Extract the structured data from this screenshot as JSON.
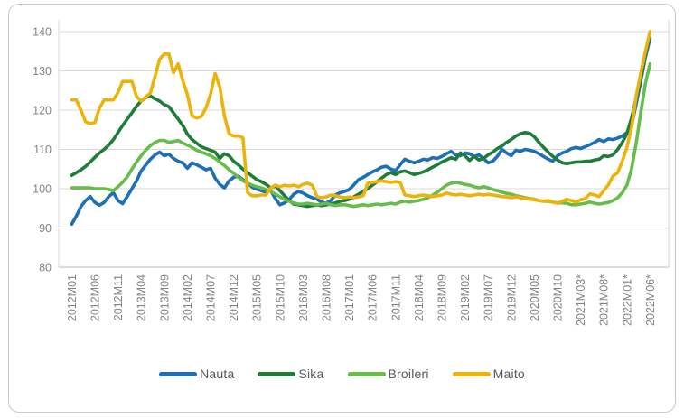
{
  "chart_data": {
    "type": "line",
    "title": "",
    "xlabel": "",
    "ylabel": "",
    "ylim": [
      80,
      145
    ],
    "y_ticks": [
      80,
      90,
      100,
      110,
      120,
      130,
      140
    ],
    "grid": "horizontal",
    "legend_position": "bottom",
    "x_tick_labels": [
      "2012M01",
      "2012M06",
      "2012M11",
      "2013M04",
      "2013M09",
      "2014M02",
      "2014M07",
      "2014M12",
      "2015M05",
      "2015M10",
      "2016M03",
      "2016M08",
      "2017M01",
      "2017M06",
      "2017M11",
      "2018M04",
      "2018M09",
      "2019M02",
      "2019M07",
      "2019M12",
      "2020M05",
      "2020M10",
      "2021M03*",
      "2021M08*",
      "2022M01*",
      "2022M06*"
    ],
    "x_tick_step": 5,
    "x_first": "2012M01",
    "x_last": "2022M06*",
    "series": [
      {
        "name": "Nauta",
        "color": "#1d70b7",
        "values": [
          91.0,
          93.0,
          95.5,
          97.0,
          98.0,
          96.5,
          95.8,
          96.5,
          98.0,
          99.0,
          97.0,
          96.2,
          98.0,
          100.0,
          102.0,
          104.5,
          106.0,
          107.5,
          108.6,
          109.3,
          108.4,
          108.8,
          107.7,
          107.0,
          106.6,
          105.2,
          106.6,
          106.1,
          105.5,
          104.8,
          105.2,
          102.7,
          101.1,
          100.2,
          102.0,
          102.9,
          103.2,
          102.3,
          101.4,
          100.4,
          99.9,
          99.5,
          99.1,
          99.5,
          97.5,
          95.9,
          96.4,
          97.2,
          98.6,
          99.3,
          98.9,
          98.2,
          97.7,
          97.3,
          96.6,
          96.3,
          97.0,
          98.4,
          99.0,
          99.3,
          99.8,
          101.0,
          102.3,
          102.9,
          103.6,
          104.3,
          104.8,
          105.5,
          105.7,
          105.0,
          104.6,
          106.1,
          107.5,
          107.0,
          106.6,
          107.0,
          107.5,
          107.3,
          107.9,
          107.7,
          108.2,
          108.9,
          109.5,
          108.6,
          108.4,
          109.1,
          108.9,
          108.2,
          108.6,
          107.7,
          106.6,
          107.0,
          108.2,
          110.0,
          109.1,
          108.4,
          109.8,
          109.5,
          110.0,
          109.8,
          109.5,
          108.9,
          108.2,
          107.5,
          107.0,
          108.4,
          109.1,
          109.5,
          110.2,
          110.5,
          110.2,
          110.7,
          111.2,
          111.8,
          112.5,
          112.0,
          112.7,
          112.5,
          112.9,
          113.4,
          114.3,
          116.0,
          121.5,
          127.5,
          133.5,
          138.3
        ]
      },
      {
        "name": "Sika",
        "color": "#1e7d39",
        "values": [
          103.4,
          104.1,
          104.8,
          105.7,
          106.8,
          108.0,
          109.1,
          110.0,
          111.1,
          112.5,
          114.3,
          116.1,
          117.7,
          119.3,
          121.0,
          122.3,
          123.2,
          123.6,
          122.9,
          122.3,
          121.4,
          120.9,
          119.3,
          117.7,
          116.1,
          113.9,
          112.5,
          111.6,
          110.7,
          110.2,
          109.8,
          109.3,
          107.7,
          108.9,
          108.4,
          107.0,
          106.1,
          105.0,
          104.1,
          103.2,
          102.3,
          101.8,
          101.1,
          100.2,
          100.7,
          99.5,
          98.2,
          97.0,
          96.1,
          95.9,
          95.7,
          95.5,
          95.7,
          95.9,
          95.7,
          95.9,
          96.1,
          96.4,
          96.8,
          97.0,
          97.3,
          97.9,
          98.6,
          99.3,
          100.0,
          100.9,
          101.8,
          102.7,
          103.6,
          104.1,
          103.6,
          104.3,
          104.5,
          104.1,
          103.6,
          103.9,
          104.3,
          104.8,
          105.5,
          106.1,
          106.8,
          107.3,
          107.9,
          107.5,
          109.1,
          108.4,
          107.2,
          108.2,
          107.3,
          107.7,
          108.6,
          109.3,
          110.2,
          110.9,
          111.8,
          112.5,
          113.4,
          114.0,
          114.3,
          114.1,
          113.2,
          111.8,
          110.5,
          109.3,
          108.2,
          107.3,
          106.6,
          106.4,
          106.6,
          106.8,
          106.8,
          107.0,
          107.0,
          107.3,
          107.5,
          108.4,
          108.2,
          108.6,
          110.0,
          111.8,
          114.0,
          118.0,
          123.0,
          128.5,
          134.5,
          139.3
        ]
      },
      {
        "name": "Broileri",
        "color": "#66bd4a",
        "values": [
          100.2,
          100.2,
          100.2,
          100.2,
          100.2,
          100.0,
          100.0,
          100.0,
          99.8,
          99.5,
          100.5,
          101.6,
          103.0,
          105.0,
          106.8,
          108.4,
          109.8,
          111.0,
          111.8,
          112.3,
          112.3,
          111.8,
          112.0,
          112.3,
          111.6,
          111.1,
          110.5,
          109.8,
          109.3,
          108.9,
          108.4,
          107.7,
          106.8,
          105.9,
          104.8,
          103.9,
          102.9,
          102.0,
          101.4,
          100.9,
          100.5,
          100.2,
          99.8,
          99.3,
          98.6,
          97.9,
          97.3,
          96.8,
          96.4,
          96.1,
          96.1,
          96.3,
          96.1,
          95.9,
          96.1,
          96.3,
          95.9,
          95.7,
          95.9,
          95.9,
          95.7,
          95.5,
          95.7,
          95.9,
          95.7,
          95.9,
          96.1,
          95.9,
          96.1,
          96.3,
          96.1,
          96.6,
          96.8,
          96.6,
          96.8,
          97.0,
          97.3,
          97.7,
          98.4,
          99.1,
          100.0,
          100.9,
          101.4,
          101.6,
          101.4,
          101.1,
          100.9,
          100.5,
          100.2,
          100.5,
          100.2,
          99.8,
          99.5,
          99.1,
          98.8,
          98.6,
          98.2,
          98.0,
          97.7,
          97.5,
          97.3,
          97.0,
          96.8,
          96.8,
          96.6,
          96.4,
          96.4,
          96.3,
          95.9,
          95.9,
          96.1,
          96.3,
          96.6,
          96.3,
          96.1,
          96.3,
          96.5,
          97.0,
          97.7,
          99.0,
          100.9,
          105.0,
          111.5,
          119.5,
          126.8,
          131.8
        ]
      },
      {
        "name": "Maito",
        "color": "#edb30b",
        "values": [
          122.6,
          122.6,
          120.0,
          117.0,
          116.6,
          116.8,
          120.5,
          122.6,
          122.6,
          122.6,
          124.5,
          127.3,
          127.3,
          127.3,
          123.5,
          122.3,
          123.4,
          124.3,
          128.6,
          133.0,
          134.3,
          134.3,
          129.5,
          131.8,
          127.5,
          124.0,
          118.6,
          118.0,
          118.4,
          120.5,
          124.0,
          129.3,
          126.0,
          118.5,
          114.0,
          113.4,
          113.4,
          113.0,
          99.0,
          98.2,
          98.2,
          98.4,
          98.4,
          100.2,
          100.9,
          100.5,
          100.9,
          100.7,
          100.9,
          100.5,
          101.1,
          101.4,
          100.9,
          98.0,
          97.7,
          97.9,
          98.4,
          98.2,
          97.9,
          97.7,
          97.9,
          97.7,
          97.9,
          98.2,
          101.4,
          101.6,
          101.8,
          102.0,
          101.8,
          101.6,
          101.8,
          101.6,
          98.4,
          98.2,
          98.0,
          98.2,
          98.4,
          98.2,
          98.0,
          98.2,
          98.4,
          98.9,
          98.6,
          98.4,
          98.6,
          98.4,
          98.2,
          98.4,
          98.6,
          98.4,
          98.6,
          98.4,
          98.2,
          98.0,
          97.9,
          97.7,
          97.9,
          97.7,
          97.5,
          97.3,
          97.2,
          97.0,
          96.8,
          97.0,
          96.6,
          96.3,
          96.8,
          97.3,
          97.0,
          96.6,
          97.2,
          97.5,
          98.7,
          98.4,
          98.0,
          99.5,
          101.0,
          103.2,
          104.1,
          107.0,
          110.5,
          115.5,
          123.5,
          129.5,
          135.0,
          140.0
        ]
      }
    ]
  },
  "colors": {
    "gridline": "#d9d9d9",
    "axis_line": "#c6c6c6",
    "tick_text": "#848484",
    "legend_text": "#595959",
    "frame_border": "#c9c9c9"
  }
}
